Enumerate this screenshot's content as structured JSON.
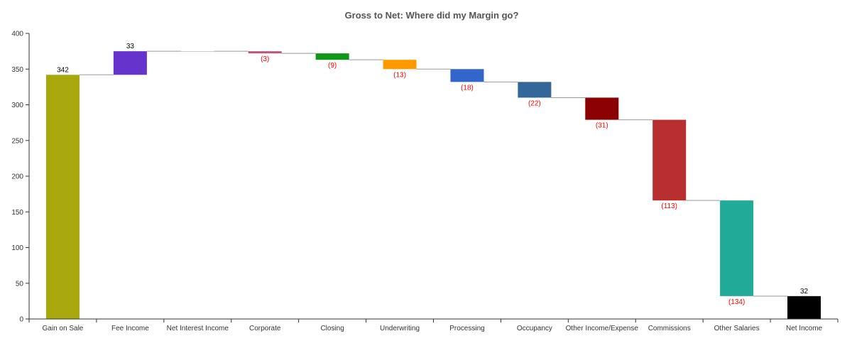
{
  "chart_data": {
    "type": "bar",
    "subtype": "waterfall",
    "title": "Gross to Net: Where did my Margin go?",
    "xlabel": "",
    "ylabel": "",
    "ylim": [
      0,
      400
    ],
    "yticks": [
      0,
      50,
      100,
      150,
      200,
      250,
      300,
      350,
      400
    ],
    "grid": false,
    "legend": "none",
    "categories": [
      "Gain on Sale",
      "Fee Income",
      "Net Interest Income",
      "Corporate",
      "Closing",
      "Underwriting",
      "Processing",
      "Occupancy",
      "Other Income/Expense",
      "Commissions",
      "Other Salaries",
      "Net Income"
    ],
    "values": [
      342,
      33,
      0,
      -3,
      -9,
      -13,
      -18,
      -22,
      -31,
      -113,
      -134,
      32
    ],
    "data_labels": [
      "342",
      "33",
      "",
      "(3)",
      "(9)",
      "(13)",
      "(18)",
      "(22)",
      "(31)",
      "(113)",
      "(134)",
      "32"
    ],
    "colors": [
      "#a8a80d",
      "#6633cc",
      "#999999",
      "#c2547a",
      "#109618",
      "#ff9900",
      "#3366cc",
      "#336699",
      "#8b0000",
      "#b82e2e",
      "#22aa99",
      "#000000"
    ],
    "label_colors": {
      "positive": "#000000",
      "negative": "#ff0000"
    },
    "connector_color": "#999999",
    "axis_color": "#333333"
  }
}
